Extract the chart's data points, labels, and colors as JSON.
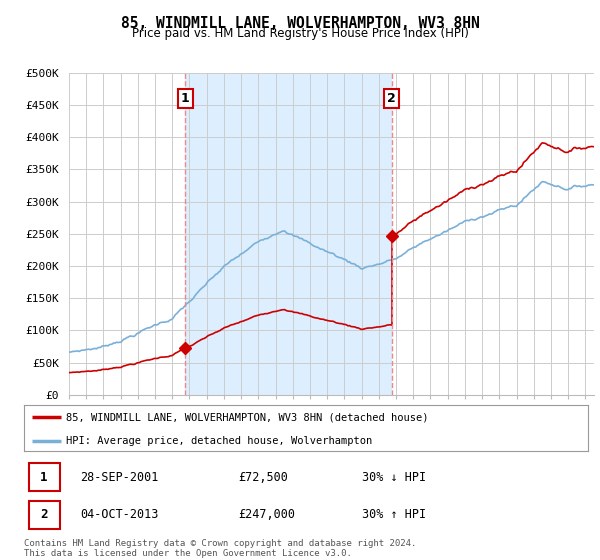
{
  "title": "85, WINDMILL LANE, WOLVERHAMPTON, WV3 8HN",
  "subtitle": "Price paid vs. HM Land Registry's House Price Index (HPI)",
  "background_color": "#ffffff",
  "plot_bg_color": "#ffffff",
  "grid_color": "#cccccc",
  "shade_color": "#ddeeff",
  "ylim": [
    0,
    500000
  ],
  "yticks": [
    0,
    50000,
    100000,
    150000,
    200000,
    250000,
    300000,
    350000,
    400000,
    450000,
    500000
  ],
  "ytick_labels": [
    "£0",
    "£50K",
    "£100K",
    "£150K",
    "£200K",
    "£250K",
    "£300K",
    "£350K",
    "£400K",
    "£450K",
    "£500K"
  ],
  "hpi_color": "#7ab0d8",
  "price_color": "#cc0000",
  "vline_color": "#ee8888",
  "sale1_x": 2001.75,
  "sale1_y": 72500,
  "sale2_x": 2013.75,
  "sale2_y": 247000,
  "legend_price_label": "85, WINDMILL LANE, WOLVERHAMPTON, WV3 8HN (detached house)",
  "legend_hpi_label": "HPI: Average price, detached house, Wolverhampton",
  "table_row1": [
    "1",
    "28-SEP-2001",
    "£72,500",
    "30% ↓ HPI"
  ],
  "table_row2": [
    "2",
    "04-OCT-2013",
    "£247,000",
    "30% ↑ HPI"
  ],
  "footer": "Contains HM Land Registry data © Crown copyright and database right 2024.\nThis data is licensed under the Open Government Licence v3.0.",
  "xmin": 1995,
  "xmax": 2025.5
}
